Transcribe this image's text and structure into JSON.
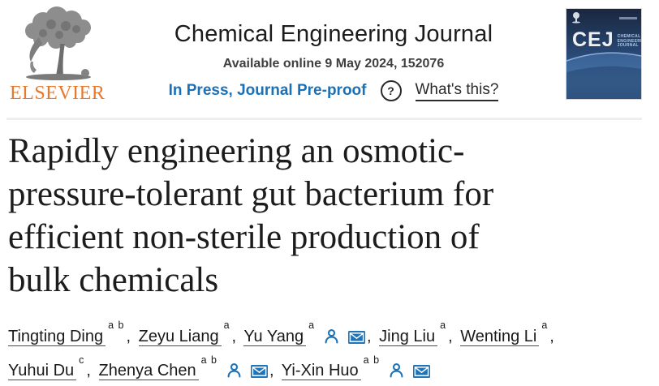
{
  "header": {
    "journal_name": "Chemical Engineering Journal",
    "availability": "Available online 9 May 2024, 152076",
    "status_link": "In Press, Journal Pre-proof",
    "help_icon_glyph": "?",
    "help_label": "What's this?",
    "elsevier_wordmark": "ELSEVIER"
  },
  "cover": {
    "initials": "CEJ",
    "journal_lines": [
      "CHEMICAL",
      "ENGINEERING",
      "JOURNAL"
    ]
  },
  "article": {
    "title": "Rapidly engineering an osmotic-pressure-tolerant gut bacterium for efficient non-sterile production of bulk chemicals",
    "title_lines": [
      "Rapidly engineering an osmotic-",
      "pressure-tolerant gut bacterium for",
      "efficient non-sterile production of",
      "bulk chemicals"
    ]
  },
  "authors": {
    "separator": ",",
    "line1": [
      {
        "name": "Tingting Ding",
        "sup": "a b",
        "person": false,
        "mail": false
      },
      {
        "name": "Zeyu Liang",
        "sup": "a",
        "person": false,
        "mail": false
      },
      {
        "name": "Yu Yang",
        "sup": "a",
        "person": true,
        "mail": true
      },
      {
        "name": "Jing Liu",
        "sup": "a",
        "person": false,
        "mail": false
      },
      {
        "name": "Wenting Li",
        "sup": "a",
        "person": false,
        "mail": false
      }
    ],
    "line2": [
      {
        "name": "Yuhui Du",
        "sup": "c",
        "person": false,
        "mail": false
      },
      {
        "name": "Zhenya Chen",
        "sup": "a b",
        "person": true,
        "mail": true
      },
      {
        "name": "Yi-Xin Huo",
        "sup": "a b",
        "person": true,
        "mail": true
      }
    ]
  },
  "icons": {
    "person": "author-profile-icon",
    "mail": "corresponding-author-envelope-icon",
    "help": "question-mark-circle-icon"
  },
  "colors": {
    "link_blue": "#1b71b8",
    "icon_blue": "#1e74ba",
    "elsevier_orange": "#e8782c",
    "title_text": "#1c1c1c",
    "muted_text": "#3f3f3f",
    "divider": "#efefef",
    "cover_navy_top": "#1a2740",
    "cover_blue_bottom": "#2e5180"
  }
}
